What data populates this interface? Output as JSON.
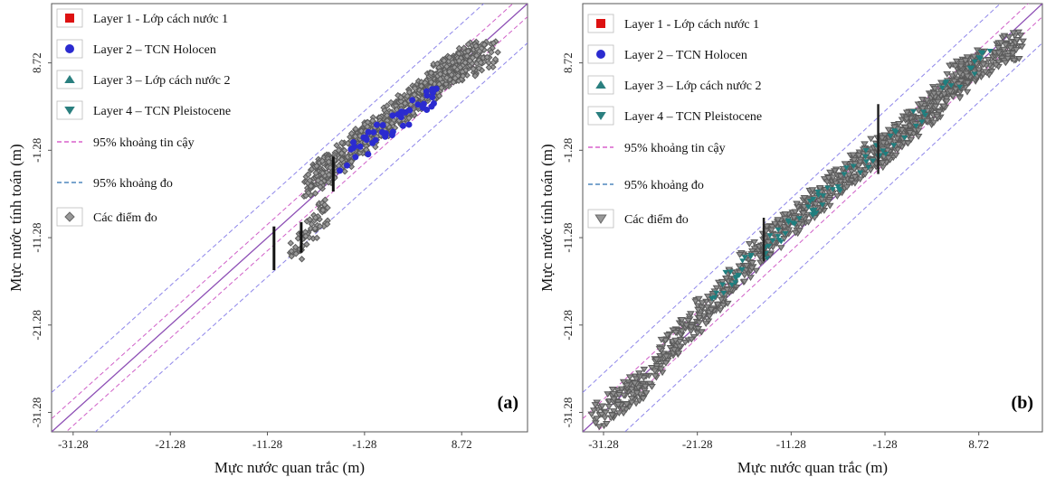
{
  "chart_data": [
    {
      "type": "scatter",
      "panel_label": "(a)",
      "xlabel": "Mực nước quan trắc (m)",
      "ylabel": "Mực nước tính toán (m)",
      "x_ticks": [
        -31.28,
        -21.28,
        -11.28,
        -1.28,
        8.72
      ],
      "y_ticks": [
        -31.28,
        -21.28,
        -11.28,
        -1.28,
        8.72
      ],
      "xlim": [
        -33.5,
        15.5
      ],
      "ylim": [
        -33.5,
        15.5
      ],
      "grid": false,
      "legend_position": "top-left",
      "legend": [
        {
          "label": "Layer 1 - Lớp cách nước 1",
          "marker": "square",
          "color": "#dd1111"
        },
        {
          "label": "Layer 2 – TCN Holocen",
          "marker": "circle",
          "color": "#2b2bd0"
        },
        {
          "label": "Layer 3 – Lớp cách nước 2",
          "marker": "triangle-up",
          "color": "#2a7f7f"
        },
        {
          "label": "Layer 4 – TCN Pleistocene",
          "marker": "triangle-down",
          "color": "#2a7f7f"
        },
        {
          "label": "95% khoảng tin cậy",
          "marker": "dash",
          "color": "#d040c0"
        },
        {
          "label": "95% khoảng đo",
          "marker": "dash",
          "color": "#2a6fb0"
        },
        {
          "label": "Các điểm đo",
          "marker": "diamond",
          "color": "#999999"
        }
      ],
      "measured_color": "#9a9a9a",
      "highlight_color": "#2b2bd0",
      "measured_clusters": [
        {
          "x": [
            -7,
            10
          ],
          "y": [
            -5,
            10
          ],
          "count": 700
        },
        {
          "x": [
            6,
            12
          ],
          "y": [
            7,
            10
          ],
          "count": 120
        },
        {
          "x": [
            -9,
            -5
          ],
          "y": [
            -14,
            -8
          ],
          "count": 60
        }
      ],
      "highlight_clusters": [
        {
          "x": [
            -4,
            6
          ],
          "y": [
            -3,
            5
          ],
          "count": 45
        }
      ]
    },
    {
      "type": "scatter",
      "panel_label": "(b)",
      "xlabel": "Mực nước quan trắc (m)",
      "ylabel": "Mực nước tính toán (m)",
      "x_ticks": [
        -31.28,
        -21.28,
        -11.28,
        -1.28,
        8.72
      ],
      "y_ticks": [
        -31.28,
        -21.28,
        -11.28,
        -1.28,
        8.72
      ],
      "xlim": [
        -33.5,
        15.5
      ],
      "ylim": [
        -33.5,
        15.5
      ],
      "grid": false,
      "legend_position": "top-left",
      "legend": [
        {
          "label": "Layer 1 - Lớp cách nước 1",
          "marker": "square",
          "color": "#dd1111"
        },
        {
          "label": "Layer 2 – TCN Holocen",
          "marker": "circle",
          "color": "#2b2bd0"
        },
        {
          "label": "Layer 3 – Lớp cách nước 2",
          "marker": "triangle-up",
          "color": "#2a7f7f"
        },
        {
          "label": "Layer 4 – TCN Pleistocene",
          "marker": "triangle-down",
          "color": "#2a7f7f"
        },
        {
          "label": "95% khoảng tin cậy",
          "marker": "dash",
          "color": "#d040c0"
        },
        {
          "label": "95% khoảng đo",
          "marker": "dash",
          "color": "#2a6fb0"
        },
        {
          "label": "Các điểm đo",
          "marker": "triangle-down",
          "color": "#999999"
        }
      ],
      "measured_color": "#8f8f8f",
      "highlight_color": "#1f7f7f",
      "measured_clusters": [
        {
          "x": [
            -32,
            -26
          ],
          "y": [
            -32,
            -27
          ],
          "count": 120
        },
        {
          "x": [
            -26,
            -14
          ],
          "y": [
            -26,
            -12
          ],
          "count": 260
        },
        {
          "x": [
            -14,
            -2
          ],
          "y": [
            -12,
            -1
          ],
          "count": 320
        },
        {
          "x": [
            -2,
            8
          ],
          "y": [
            -2,
            8
          ],
          "count": 360
        },
        {
          "x": [
            6,
            13
          ],
          "y": [
            7,
            11
          ],
          "count": 160
        }
      ],
      "highlight_clusters": [
        {
          "x": [
            -20,
            10
          ],
          "y": [
            -18,
            10
          ],
          "count": 90
        }
      ]
    }
  ]
}
